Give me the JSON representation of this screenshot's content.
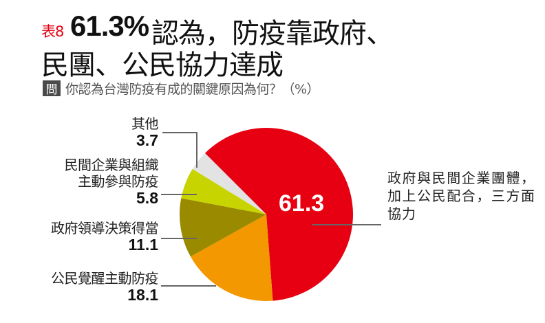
{
  "header": {
    "tag": "表8",
    "headline_number": "61.3%",
    "headline_line1": "認為，防疫靠政府、",
    "headline_line2": "民團、公民協力達成"
  },
  "question": {
    "badge": "問",
    "text": "你認為台灣防疫有成的關鍵原因為何？（%）"
  },
  "labels": {
    "other": {
      "name": "其他",
      "value": "3.7"
    },
    "private": {
      "name_line1": "民間企業與組織",
      "name_line2": "主動參與防疫",
      "value": "5.8"
    },
    "government": {
      "name": "政府領導決策得當",
      "value": "11.1"
    },
    "citizens": {
      "name": "公民覺醒主動防疫",
      "value": "18.1"
    },
    "collaboration": {
      "name": "政府與民間企業團體，加上公民配合，三方面協力",
      "value": "61.3"
    }
  },
  "colors": {
    "collaboration": "#e60012",
    "citizens": "#f39800",
    "government": "#998a00",
    "private": "#c8d400",
    "other": "#e3e3e3",
    "leader_line": "#666666"
  },
  "chart_data": {
    "type": "pie",
    "title": "61.3%認為，防疫靠政府、民團、公民協力達成",
    "subtitle": "你認為台灣防疫有成的關鍵原因為何？（%）",
    "categories": [
      "政府與民間企業團體，加上公民配合，三方面協力",
      "公民覺醒主動防疫",
      "政府領導決策得當",
      "民間企業與組織主動參與防疫",
      "其他"
    ],
    "values": [
      61.3,
      18.1,
      11.1,
      5.8,
      3.7
    ],
    "colors": [
      "#e60012",
      "#f39800",
      "#998a00",
      "#c8d400",
      "#e3e3e3"
    ],
    "unit": "%",
    "start_angle_deg_clockwise_from_top": 315,
    "legend": "none (leader-line labels)"
  }
}
